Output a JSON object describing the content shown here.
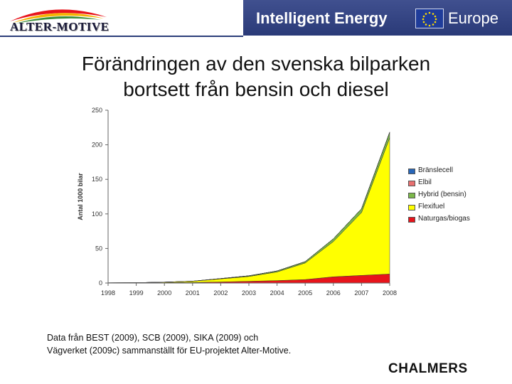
{
  "header": {
    "logo_text": "ALTER-MOTIVE",
    "program_text": "Intelligent Energy",
    "program_suffix": "Europe"
  },
  "title": {
    "line1": "Förändringen av den svenska bilparken",
    "line2": "bortsett från bensin och diesel"
  },
  "chart_data": {
    "type": "area",
    "stacked": true,
    "categories": [
      "1998",
      "1999",
      "2000",
      "2001",
      "2002",
      "2003",
      "2004",
      "2005",
      "2006",
      "2007",
      "2008"
    ],
    "ylabel": "Antal 1000 bilar",
    "ylim": [
      0,
      250
    ],
    "yticks": [
      0,
      50,
      100,
      150,
      200,
      250
    ],
    "grid": false,
    "legend_position": "right",
    "series": [
      {
        "name": "Naturgas/biogas",
        "color": "#e8141b",
        "values": [
          0.2,
          0.3,
          0.5,
          0.8,
          1.5,
          2.5,
          3.5,
          5,
          9,
          11,
          13
        ]
      },
      {
        "name": "Flexifuel",
        "color": "#ffff00",
        "values": [
          0.1,
          0.2,
          0.8,
          1.8,
          4.5,
          7,
          12.5,
          24,
          51,
          91,
          197
        ]
      },
      {
        "name": "Hybrid (bensin)",
        "color": "#7cb84a",
        "values": [
          0,
          0,
          0,
          0.1,
          0.5,
          1,
          1.5,
          2,
          4,
          5.5,
          8
        ]
      },
      {
        "name": "Elbil",
        "color": "#e87070",
        "values": [
          0,
          0,
          0,
          0,
          0,
          0,
          0,
          0,
          0,
          0,
          0.3
        ]
      },
      {
        "name": "Bränslecell",
        "color": "#2866b8",
        "values": [
          0,
          0,
          0,
          0,
          0,
          0,
          0,
          0,
          0,
          0,
          0
        ]
      }
    ]
  },
  "source": {
    "line1": "Data från BEST (2009), SCB (2009), SIKA (2009) och",
    "line2": "Vägverket (2009c) sammanställt för EU-projektet Alter-Motive."
  },
  "footer": {
    "brand": "CHALMERS"
  },
  "colors": {
    "header_bar": "#2c3e7a",
    "eu_flag": "#1f3c9a",
    "eu_stars": "#ffdd00"
  }
}
